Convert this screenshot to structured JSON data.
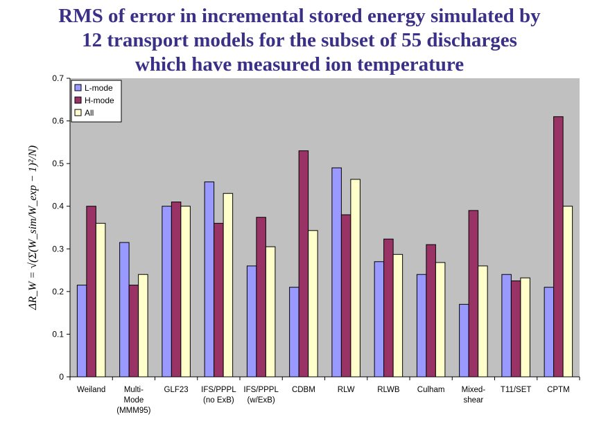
{
  "title_lines": [
    "RMS of error in incremental stored energy simulated by",
    "12 transport models for the subset of 55 discharges",
    "which have measured ion temperature"
  ],
  "chart_data": {
    "type": "bar",
    "ylabel": "ΔR_W = √(Σ(W_sim/W_exp − 1)²/N)",
    "ylim": [
      0,
      0.7
    ],
    "yticks": [
      "0",
      "0.1",
      "0.2",
      "0.3",
      "0.4",
      "0.5",
      "0.6",
      "0.7"
    ],
    "grid": false,
    "legend_position": "top-left",
    "categories": [
      [
        "Weiland"
      ],
      [
        "Multi-",
        "Mode",
        "(MMM95)"
      ],
      [
        "GLF23"
      ],
      [
        "IFS/PPPL",
        "(no ExB)"
      ],
      [
        "IFS/PPPL",
        "(w/ExB)"
      ],
      [
        "CDBM"
      ],
      [
        "RLW"
      ],
      [
        "RLWB"
      ],
      [
        "Culham"
      ],
      [
        "Mixed-",
        "shear"
      ],
      [
        "T11/SET"
      ],
      [
        "CPTM"
      ]
    ],
    "series": [
      {
        "name": "L-mode",
        "color": "#9999ff",
        "values": [
          0.215,
          0.315,
          0.4,
          0.457,
          0.26,
          0.21,
          0.49,
          0.27,
          0.24,
          0.17,
          0.24,
          0.21
        ]
      },
      {
        "name": "H-mode",
        "color": "#993366",
        "values": [
          0.4,
          0.215,
          0.41,
          0.36,
          0.374,
          0.53,
          0.38,
          0.323,
          0.31,
          0.39,
          0.225,
          0.61
        ]
      },
      {
        "name": "All",
        "color": "#ffffcc",
        "values": [
          0.36,
          0.24,
          0.4,
          0.43,
          0.305,
          0.343,
          0.463,
          0.287,
          0.268,
          0.26,
          0.232,
          0.4
        ]
      }
    ],
    "plot_background": "#c0c0c0"
  }
}
